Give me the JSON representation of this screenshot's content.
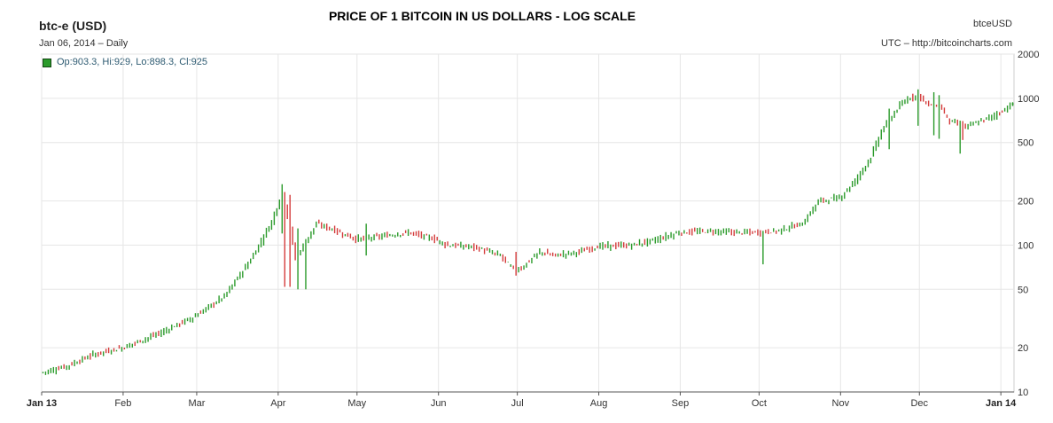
{
  "header": {
    "symbol": "btc-e (USD)",
    "date_line": "Jan 06, 2014 – Daily",
    "ticker": "btceUSD",
    "source": "UTC – http://bitcoincharts.com",
    "ohlc": "Op:903.3, Hi:929, Lo:898.3, Cl:925"
  },
  "colors": {
    "up": "#2a9a2a",
    "down": "#d43b3b",
    "grid": "#e6e6e6",
    "axis": "#555555"
  },
  "chart_data": {
    "type": "candlestick",
    "title": "PRICE OF 1 BITCOIN IN US DOLLARS - LOG SCALE",
    "y_scale": "log",
    "ylim": [
      10,
      2000
    ],
    "y_ticks": [
      {
        "value": 10,
        "label": "10"
      },
      {
        "value": 20,
        "label": "20"
      },
      {
        "value": 50,
        "label": "50"
      },
      {
        "value": 100,
        "label": "100"
      },
      {
        "value": 200,
        "label": "200"
      },
      {
        "value": 500,
        "label": "500"
      },
      {
        "value": 1000,
        "label": "1000"
      },
      {
        "value": 2000,
        "label": "2000"
      }
    ],
    "x_ticks": [
      {
        "label": "Jan 13",
        "day": 0,
        "bold": true
      },
      {
        "label": "Feb",
        "day": 31
      },
      {
        "label": "Mar",
        "day": 59
      },
      {
        "label": "Apr",
        "day": 90
      },
      {
        "label": "May",
        "day": 120
      },
      {
        "label": "Jun",
        "day": 151
      },
      {
        "label": "Jul",
        "day": 181
      },
      {
        "label": "Aug",
        "day": 212
      },
      {
        "label": "Sep",
        "day": 243
      },
      {
        "label": "Oct",
        "day": 273
      },
      {
        "label": "Nov",
        "day": 304
      },
      {
        "label": "Dec",
        "day": 334
      },
      {
        "label": "Jan 14",
        "day": 365,
        "bold": true
      }
    ],
    "x_range_days": [
      0,
      370
    ],
    "close_anchors": [
      [
        0,
        13.5
      ],
      [
        10,
        15
      ],
      [
        20,
        18
      ],
      [
        31,
        20
      ],
      [
        45,
        25
      ],
      [
        59,
        33
      ],
      [
        70,
        45
      ],
      [
        80,
        80
      ],
      [
        88,
        145
      ],
      [
        92,
        230
      ],
      [
        95,
        130
      ],
      [
        97,
        80
      ],
      [
        100,
        100
      ],
      [
        105,
        140
      ],
      [
        110,
        130
      ],
      [
        120,
        110
      ],
      [
        130,
        115
      ],
      [
        140,
        122
      ],
      [
        150,
        110
      ],
      [
        155,
        100
      ],
      [
        165,
        97
      ],
      [
        175,
        85
      ],
      [
        180,
        68
      ],
      [
        183,
        70
      ],
      [
        190,
        90
      ],
      [
        195,
        85
      ],
      [
        205,
        90
      ],
      [
        212,
        98
      ],
      [
        225,
        100
      ],
      [
        235,
        110
      ],
      [
        243,
        122
      ],
      [
        255,
        125
      ],
      [
        265,
        122
      ],
      [
        273,
        122
      ],
      [
        280,
        125
      ],
      [
        290,
        140
      ],
      [
        296,
        200
      ],
      [
        304,
        210
      ],
      [
        310,
        275
      ],
      [
        316,
        400
      ],
      [
        320,
        600
      ],
      [
        326,
        850
      ],
      [
        330,
        1000
      ],
      [
        334,
        1050
      ],
      [
        338,
        900
      ],
      [
        342,
        900
      ],
      [
        346,
        700
      ],
      [
        352,
        640
      ],
      [
        358,
        700
      ],
      [
        365,
        800
      ],
      [
        370,
        925
      ]
    ],
    "spikes": [
      {
        "day": 91,
        "high": 260,
        "low": 120
      },
      {
        "day": 92,
        "high": 230,
        "low": 52
      },
      {
        "day": 94,
        "high": 220,
        "low": 52
      },
      {
        "day": 97,
        "high": 130,
        "low": 50
      },
      {
        "day": 100,
        "high": 110,
        "low": 50
      },
      {
        "day": 123,
        "high": 140,
        "low": 85
      },
      {
        "day": 180,
        "high": 90,
        "low": 62
      },
      {
        "day": 274,
        "high": 123,
        "low": 74
      },
      {
        "day": 322,
        "high": 850,
        "low": 450
      },
      {
        "day": 333,
        "high": 1150,
        "low": 650
      },
      {
        "day": 339,
        "high": 1100,
        "low": 560
      },
      {
        "day": 341,
        "high": 1050,
        "low": 530
      },
      {
        "day": 349,
        "high": 650,
        "low": 420
      },
      {
        "day": 350,
        "high": 700,
        "low": 520
      }
    ],
    "last": {
      "open": 903.3,
      "high": 929,
      "low": 898.3,
      "close": 925
    }
  }
}
